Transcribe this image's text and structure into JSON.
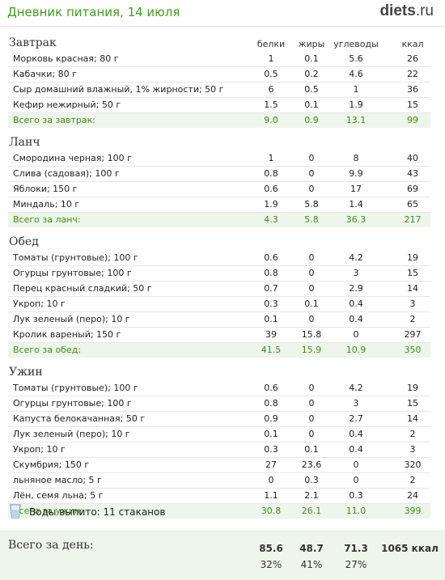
{
  "header": {
    "title": "Дневник питания, 14 июля",
    "logo_main": "diets",
    "logo_suffix": ".ru"
  },
  "columns": [
    "белки",
    "жиры",
    "углеводы",
    "ккал"
  ],
  "meals": [
    {
      "name": "Завтрак",
      "items": [
        {
          "name": "Морковь красная; 80 г",
          "p": "1",
          "f": "0.1",
          "c": "5.6",
          "k": "26"
        },
        {
          "name": "Кабачки; 80 г",
          "p": "0.5",
          "f": "0.2",
          "c": "4.6",
          "k": "22"
        },
        {
          "name": "Сыр домашний влажный, 1% жирности; 50 г",
          "p": "6",
          "f": "0.5",
          "c": "1",
          "k": "36"
        },
        {
          "name": "Кефир нежирный; 50 г",
          "p": "1.5",
          "f": "0.1",
          "c": "1.9",
          "k": "15"
        }
      ],
      "total": {
        "name": "Всего за завтрак:",
        "p": "9.0",
        "f": "0.9",
        "c": "13.1",
        "k": "99"
      }
    },
    {
      "name": "Ланч",
      "items": [
        {
          "name": "Смородина черная; 100 г",
          "p": "1",
          "f": "0",
          "c": "8",
          "k": "40"
        },
        {
          "name": "Слива (садовая); 100 г",
          "p": "0.8",
          "f": "0",
          "c": "9.9",
          "k": "43"
        },
        {
          "name": "Яблоки; 150 г",
          "p": "0.6",
          "f": "0",
          "c": "17",
          "k": "69"
        },
        {
          "name": "Миндаль; 10 г",
          "p": "1.9",
          "f": "5.8",
          "c": "1.4",
          "k": "65"
        }
      ],
      "total": {
        "name": "Всего за ланч:",
        "p": "4.3",
        "f": "5.8",
        "c": "36.3",
        "k": "217"
      }
    },
    {
      "name": "Обед",
      "items": [
        {
          "name": "Томаты (грунтовые); 100 г",
          "p": "0.6",
          "f": "0",
          "c": "4.2",
          "k": "19"
        },
        {
          "name": "Огурцы грунтовые; 100 г",
          "p": "0.8",
          "f": "0",
          "c": "3",
          "k": "15"
        },
        {
          "name": "Перец красный сладкий; 50 г",
          "p": "0.7",
          "f": "0",
          "c": "2.9",
          "k": "14"
        },
        {
          "name": "Укроп; 10 г",
          "p": "0.3",
          "f": "0.1",
          "c": "0.4",
          "k": "3"
        },
        {
          "name": "Лук зеленый (перо); 10 г",
          "p": "0.1",
          "f": "0",
          "c": "0.4",
          "k": "2"
        },
        {
          "name": "Кролик вареный; 150 г",
          "p": "39",
          "f": "15.8",
          "c": "0",
          "k": "297"
        }
      ],
      "total": {
        "name": "Всего за обед:",
        "p": "41.5",
        "f": "15.9",
        "c": "10.9",
        "k": "350"
      }
    },
    {
      "name": "Ужин",
      "items": [
        {
          "name": "Томаты (грунтовые); 100 г",
          "p": "0.6",
          "f": "0",
          "c": "4.2",
          "k": "19"
        },
        {
          "name": "Огурцы грунтовые; 100 г",
          "p": "0.8",
          "f": "0",
          "c": "3",
          "k": "15"
        },
        {
          "name": "Капуста белокачанная; 50 г",
          "p": "0.9",
          "f": "0",
          "c": "2.7",
          "k": "14"
        },
        {
          "name": "Лук зеленый (перо); 10 г",
          "p": "0.1",
          "f": "0",
          "c": "0.4",
          "k": "2"
        },
        {
          "name": "Укроп; 10 г",
          "p": "0.3",
          "f": "0.1",
          "c": "0.4",
          "k": "3"
        },
        {
          "name": "Скумбрия; 150 г",
          "p": "27",
          "f": "23.6",
          "c": "0",
          "k": "320"
        },
        {
          "name": "льняное масло; 5 г",
          "p": "0",
          "f": "0.3",
          "c": "0",
          "k": "2"
        },
        {
          "name": "Лён, семя льна; 5 г",
          "p": "1.1",
          "f": "2.1",
          "c": "0.3",
          "k": "24"
        }
      ],
      "total": {
        "name": "Всего за ужин:",
        "p": "30.8",
        "f": "26.1",
        "c": "11.0",
        "k": "399"
      }
    }
  ],
  "water": {
    "icon": "glass-icon",
    "text": "Воды выпито: 11 стаканов"
  },
  "day_total": {
    "label": "Всего за день:",
    "protein": "85.6",
    "fat": "48.7",
    "carbs": "71.3",
    "kcal": "1065 ккал",
    "protein_pct": "32%",
    "fat_pct": "41%",
    "carbs_pct": "27%"
  },
  "colors": {
    "accent": "#3f9d1f",
    "total_bg": "#eef5ea"
  }
}
